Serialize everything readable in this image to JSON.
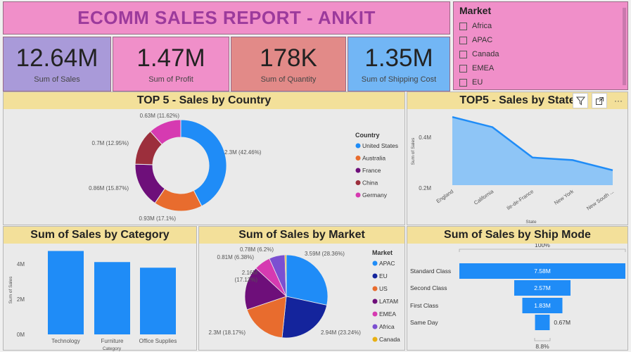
{
  "report": {
    "title": "ECOMM SALES REPORT - ANKIT"
  },
  "kpis": [
    {
      "value": "12.64M",
      "label": "Sum of Sales",
      "color": "#a99ad9"
    },
    {
      "value": "1.47M",
      "label": "Sum of Profit",
      "color": "#f08fc9"
    },
    {
      "value": "178K",
      "label": "Sum of Quantity",
      "color": "#e28a88"
    },
    {
      "value": "1.35M",
      "label": "Sum of Shipping Cost",
      "color": "#72b6f5"
    }
  ],
  "market_slicer": {
    "title": "Market",
    "items": [
      "Africa",
      "APAC",
      "Canada",
      "EMEA",
      "EU"
    ]
  },
  "toolbar": {
    "filter_icon": "filter-icon",
    "focus_icon": "focus-mode-icon",
    "more_label": "···"
  },
  "chart_data": [
    {
      "type": "pie",
      "subtype": "donut",
      "title": "TOP 5 - Sales by Country",
      "legend_title": "Country",
      "legend_position": "right",
      "categories": [
        "United States",
        "Australia",
        "France",
        "China",
        "Germany"
      ],
      "values": [
        2.3,
        0.93,
        0.86,
        0.7,
        0.63
      ],
      "labels": [
        "2.3M (42.46%)",
        "0.93M (17.1%)",
        "0.86M (15.87%)",
        "0.7M (12.95%)",
        "0.63M (11.62%)"
      ],
      "colors": [
        "#1f8cf7",
        "#e86c2e",
        "#6e0f7a",
        "#9c2f3c",
        "#d63ab1"
      ]
    },
    {
      "type": "area",
      "title": "TOP5 - Sales by State",
      "xlabel": "State",
      "ylabel": "Sum of Sales",
      "categories": [
        "England",
        "California",
        "Ile-de-France",
        "New York",
        "New South ..."
      ],
      "values": [
        0.48,
        0.44,
        0.32,
        0.31,
        0.27
      ],
      "yticks": [
        "0.2M",
        "0.4M"
      ],
      "ylim": [
        0.2,
        0.5
      ],
      "color": "#1f8cf7"
    },
    {
      "type": "bar",
      "title": "Sum of Sales by Category",
      "xlabel": "Category",
      "ylabel": "Sum of Sales",
      "categories": [
        "Technology",
        "Furniture",
        "Office Supplies"
      ],
      "values": [
        4.74,
        4.11,
        3.79
      ],
      "yticks": [
        "0M",
        "2M",
        "4M"
      ],
      "ylim": [
        0,
        5
      ],
      "color": "#1f8cf7"
    },
    {
      "type": "pie",
      "title": "Sum of Sales by Market",
      "legend_title": "Market",
      "legend_position": "right",
      "categories": [
        "APAC",
        "EU",
        "US",
        "LATAM",
        "EMEA",
        "Africa",
        "Canada"
      ],
      "values": [
        3.59,
        2.94,
        2.3,
        2.16,
        0.81,
        0.78,
        0.07
      ],
      "labels": [
        "3.59M (28.36%)",
        "2.94M (23.24%)",
        "2.3M (18.17%)",
        "2.16M (17.12%)",
        "0.81M (6.38%)",
        "0.78M (6.2%)",
        ""
      ],
      "colors": [
        "#1f8cf7",
        "#14249c",
        "#e86c2e",
        "#6e0f7a",
        "#d63ab1",
        "#7b4fd1",
        "#e8b014"
      ]
    },
    {
      "type": "funnel",
      "title": "Sum of Sales by Ship Mode",
      "categories": [
        "Standard Class",
        "Second Class",
        "First Class",
        "Same Day"
      ],
      "values": [
        7.58,
        2.57,
        1.83,
        0.67
      ],
      "labels": [
        "7.58M",
        "2.57M",
        "1.83M",
        "0.67M"
      ],
      "top_label": "100%",
      "bottom_label": "8.8%",
      "color": "#1f8cf7"
    }
  ]
}
